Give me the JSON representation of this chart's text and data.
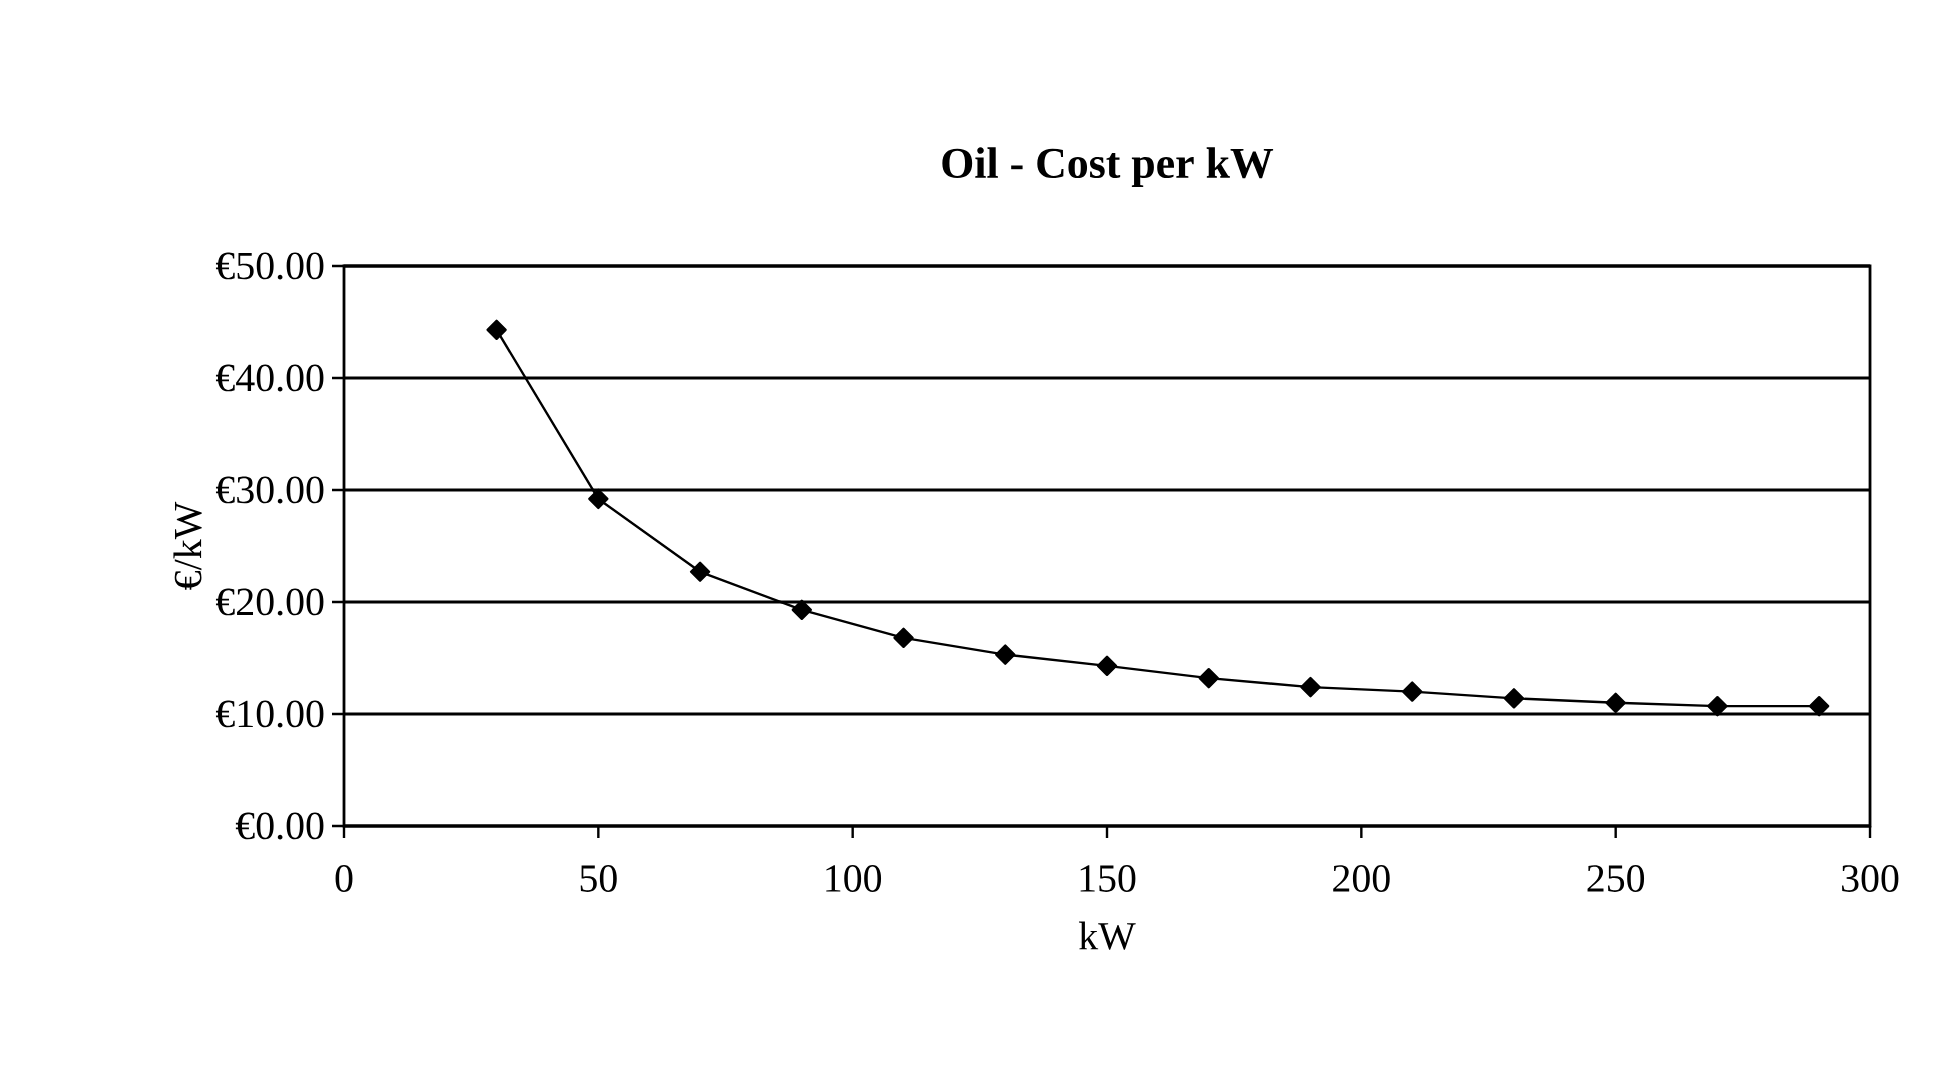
{
  "chart_data": {
    "type": "line",
    "title": "Oil - Cost per kW",
    "xlabel": "kW",
    "ylabel": "€/kW",
    "x": [
      30,
      50,
      70,
      90,
      110,
      130,
      150,
      170,
      190,
      210,
      230,
      250,
      270,
      290
    ],
    "series": [
      {
        "color": "#000000",
        "values": [
          44.3,
          29.2,
          22.7,
          19.3,
          16.8,
          15.3,
          14.3,
          13.2,
          12.4,
          12.0,
          11.4,
          11.0,
          10.7,
          10.7
        ]
      }
    ],
    "xlim": [
      0,
      300
    ],
    "xticks": [
      0,
      50,
      100,
      150,
      200,
      250,
      300
    ],
    "ylim": [
      0,
      50
    ],
    "yticks": [
      {
        "value": 0,
        "label": "€0.00"
      },
      {
        "value": 10,
        "label": "€10.00"
      },
      {
        "value": 20,
        "label": "€20.00"
      },
      {
        "value": 30,
        "label": "€30.00"
      },
      {
        "value": 40,
        "label": "€40.00"
      },
      {
        "value": 50,
        "label": "€50.00"
      }
    ],
    "grid": "y",
    "marker": "diamond",
    "line_style": "solid"
  }
}
